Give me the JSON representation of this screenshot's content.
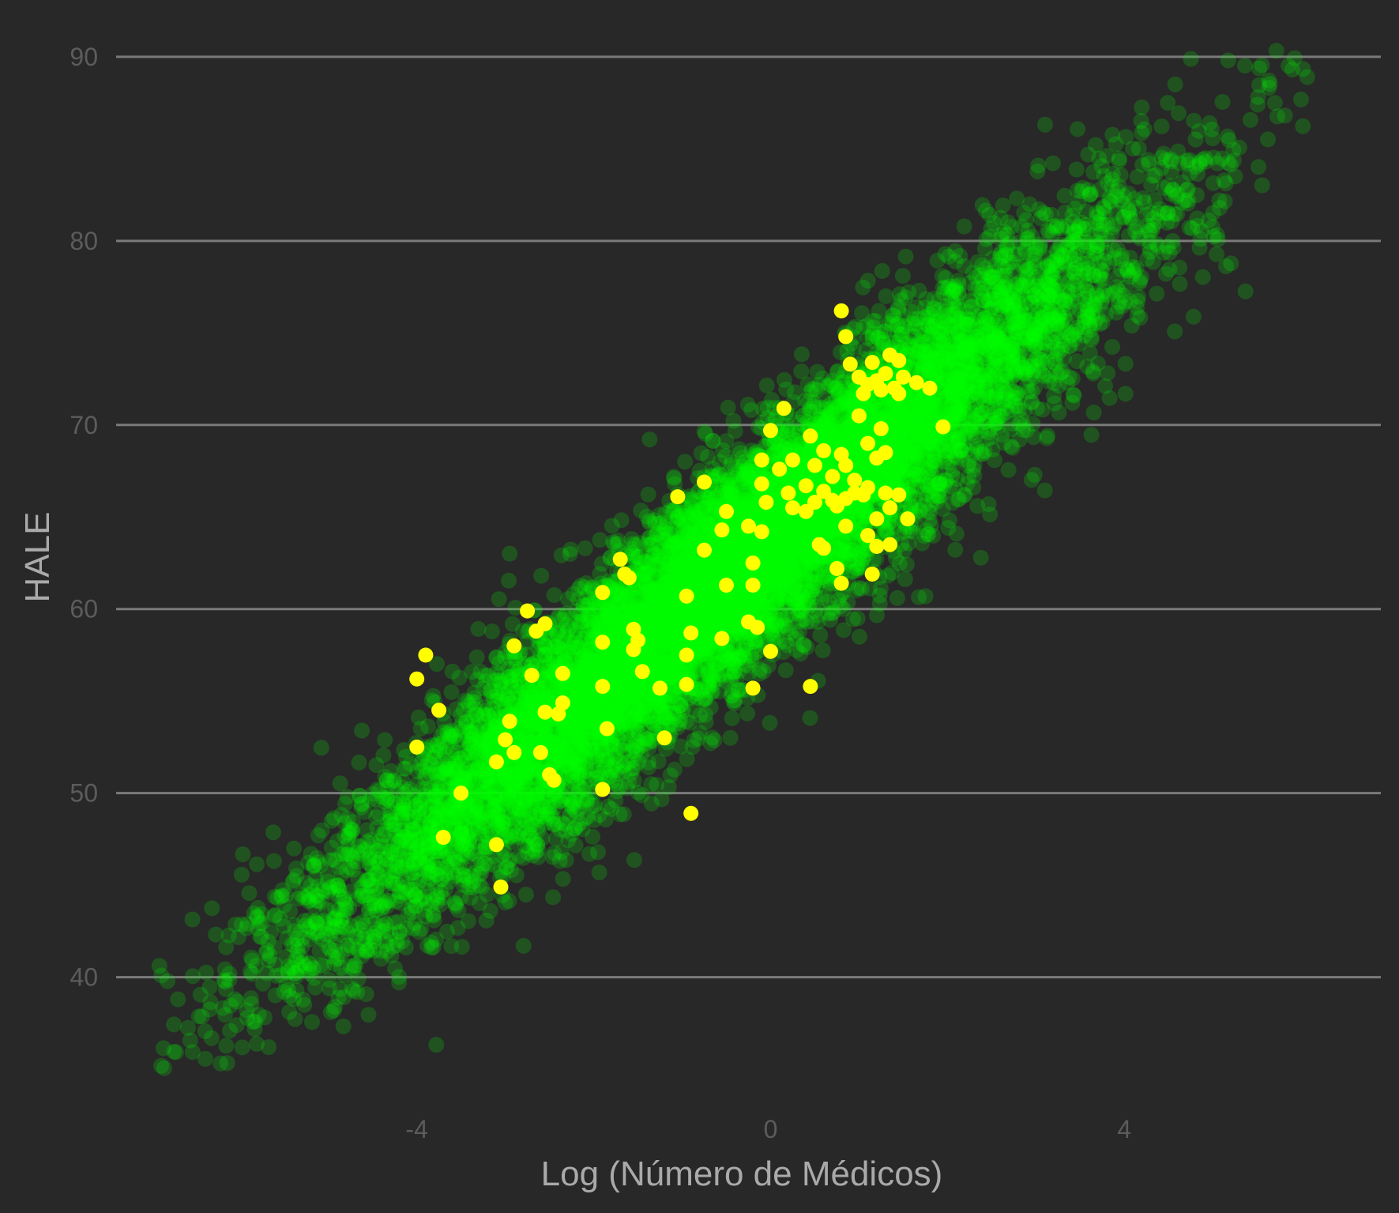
{
  "chart_data": {
    "type": "scatter",
    "title": "",
    "xlabel": "Log (Número de Médicos)",
    "ylabel": "HALE",
    "xlim": [
      -7.4,
      6.9
    ],
    "ylim": [
      33.2,
      91.8
    ],
    "xticks": [
      -4,
      0,
      4
    ],
    "xtick_labels": [
      "-4",
      "0",
      "4"
    ],
    "yticks": [
      40,
      50,
      60,
      70,
      80,
      90
    ],
    "ytick_labels": [
      "40",
      "50",
      "60",
      "70",
      "80",
      "90"
    ],
    "grid": "horizontal major gridlines only",
    "legend": "none",
    "background": "#282828",
    "series": [
      {
        "role": "cloud",
        "color": "#00ff00",
        "opacity": 0.2,
        "n_points": 12000,
        "relationship": "HALE ≈ 63.8 + 4.05 × Log (Número de Médicos)",
        "x_range": [
          -7,
          6.1
        ],
        "y_range": [
          35,
          90.4
        ]
      },
      {
        "role": "highlight",
        "color": "#ffff00",
        "opacity": 1,
        "points": [
          [
            0.8,
            76.2
          ],
          [
            0.85,
            74.8
          ],
          [
            0.9,
            73.3
          ],
          [
            1.15,
            73.4
          ],
          [
            1.35,
            73.8
          ],
          [
            1.45,
            73.5
          ],
          [
            1.0,
            72.6
          ],
          [
            1.1,
            72.2
          ],
          [
            1.3,
            72.8
          ],
          [
            1.4,
            72.0
          ],
          [
            1.2,
            72.4
          ],
          [
            1.5,
            72.6
          ],
          [
            1.65,
            72.3
          ],
          [
            1.8,
            72.0
          ],
          [
            1.05,
            71.7
          ],
          [
            1.45,
            71.7
          ],
          [
            1.25,
            71.9
          ],
          [
            1.0,
            70.5
          ],
          [
            1.25,
            69.8
          ],
          [
            1.95,
            69.9
          ],
          [
            0.15,
            70.9
          ],
          [
            0.0,
            69.7
          ],
          [
            0.45,
            69.4
          ],
          [
            1.1,
            69.0
          ],
          [
            1.3,
            68.5
          ],
          [
            1.2,
            68.2
          ],
          [
            0.6,
            68.6
          ],
          [
            0.8,
            68.4
          ],
          [
            0.25,
            68.1
          ],
          [
            0.5,
            67.8
          ],
          [
            -0.1,
            68.1
          ],
          [
            0.1,
            67.6
          ],
          [
            0.7,
            67.2
          ],
          [
            0.85,
            67.8
          ],
          [
            0.95,
            67.0
          ],
          [
            -0.75,
            66.9
          ],
          [
            -0.1,
            66.8
          ],
          [
            0.4,
            66.7
          ],
          [
            0.6,
            66.4
          ],
          [
            0.2,
            66.3
          ],
          [
            0.5,
            65.8
          ],
          [
            0.7,
            65.9
          ],
          [
            0.85,
            66.0
          ],
          [
            0.95,
            66.3
          ],
          [
            1.1,
            66.6
          ],
          [
            1.3,
            66.3
          ],
          [
            1.45,
            66.2
          ],
          [
            1.05,
            66.2
          ],
          [
            -0.05,
            65.8
          ],
          [
            0.25,
            65.5
          ],
          [
            0.4,
            65.3
          ],
          [
            0.75,
            65.6
          ],
          [
            -1.05,
            66.1
          ],
          [
            -0.5,
            65.3
          ],
          [
            1.35,
            65.5
          ],
          [
            1.2,
            64.9
          ],
          [
            1.55,
            64.9
          ],
          [
            -0.55,
            64.3
          ],
          [
            -0.25,
            64.5
          ],
          [
            -0.1,
            64.2
          ],
          [
            0.85,
            64.5
          ],
          [
            1.1,
            64.0
          ],
          [
            0.55,
            63.5
          ],
          [
            0.6,
            63.3
          ],
          [
            1.2,
            63.4
          ],
          [
            1.35,
            63.5
          ],
          [
            -0.75,
            63.2
          ],
          [
            -0.2,
            62.5
          ],
          [
            0.75,
            62.2
          ],
          [
            1.15,
            61.9
          ],
          [
            0.8,
            61.4
          ],
          [
            -1.7,
            62.7
          ],
          [
            -1.65,
            61.9
          ],
          [
            -1.6,
            61.7
          ],
          [
            -0.5,
            61.3
          ],
          [
            -0.2,
            61.3
          ],
          [
            -0.95,
            60.7
          ],
          [
            -1.9,
            60.9
          ],
          [
            -2.75,
            59.9
          ],
          [
            -2.55,
            59.2
          ],
          [
            -2.65,
            58.8
          ],
          [
            -0.25,
            59.3
          ],
          [
            -0.15,
            59.0
          ],
          [
            -1.55,
            58.9
          ],
          [
            -1.5,
            58.3
          ],
          [
            -0.9,
            58.7
          ],
          [
            -0.55,
            58.4
          ],
          [
            -1.9,
            58.2
          ],
          [
            -2.9,
            58.0
          ],
          [
            -1.55,
            57.8
          ],
          [
            -0.95,
            57.5
          ],
          [
            0.0,
            57.7
          ],
          [
            -3.9,
            57.5
          ],
          [
            -2.35,
            56.5
          ],
          [
            -2.7,
            56.4
          ],
          [
            -1.45,
            56.6
          ],
          [
            -4.0,
            56.2
          ],
          [
            -1.9,
            55.8
          ],
          [
            -1.25,
            55.7
          ],
          [
            -0.95,
            55.9
          ],
          [
            0.45,
            55.8
          ],
          [
            -0.2,
            55.7
          ],
          [
            -3.75,
            54.5
          ],
          [
            -2.35,
            54.9
          ],
          [
            -2.55,
            54.4
          ],
          [
            -2.4,
            54.3
          ],
          [
            -2.95,
            53.9
          ],
          [
            -1.85,
            53.5
          ],
          [
            -3.0,
            52.9
          ],
          [
            -4.0,
            52.5
          ],
          [
            -2.9,
            52.2
          ],
          [
            -2.6,
            52.2
          ],
          [
            -1.2,
            53.0
          ],
          [
            -3.1,
            51.7
          ],
          [
            -2.5,
            51.0
          ],
          [
            -2.45,
            50.7
          ],
          [
            -3.5,
            50.0
          ],
          [
            -1.9,
            50.2
          ],
          [
            -0.9,
            48.9
          ],
          [
            -3.7,
            47.6
          ],
          [
            -3.1,
            47.2
          ],
          [
            -3.05,
            44.9
          ]
        ]
      }
    ]
  }
}
